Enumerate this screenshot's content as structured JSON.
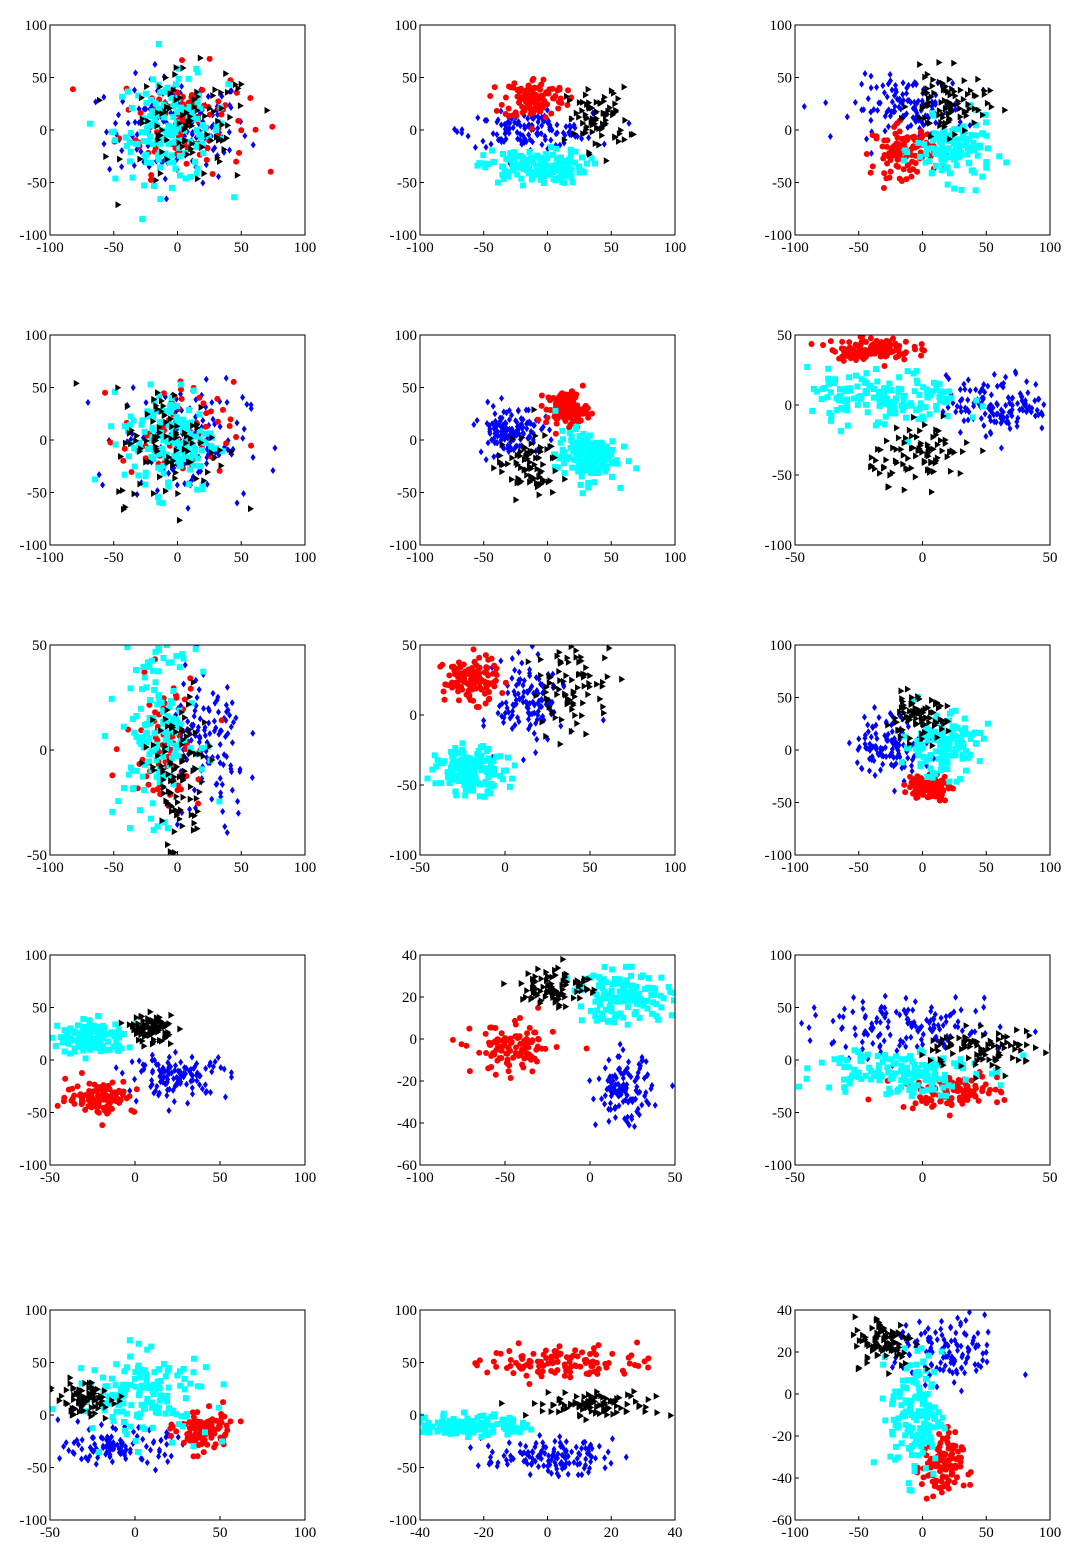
{
  "palette": {
    "red": "#ff0000",
    "blue": "#0000ff",
    "cyan": "#00ffff",
    "black": "#000000"
  },
  "marker_shapes": {
    "red": "circle",
    "blue": "diamond",
    "cyan": "square",
    "black": "triangle-right"
  },
  "chart_data": [
    {
      "type": "scatter",
      "xlim": [
        -100,
        100
      ],
      "ylim": [
        -100,
        100
      ],
      "xticks": [
        -100,
        -50,
        0,
        50,
        100
      ],
      "yticks": [
        -100,
        -50,
        0,
        50,
        100
      ],
      "grid": false,
      "clusters": [
        {
          "color": "red",
          "cx": 5,
          "cy": 10,
          "sx": 25,
          "sy": 25,
          "n": 100
        },
        {
          "color": "blue",
          "cx": 0,
          "cy": 0,
          "sx": 28,
          "sy": 25,
          "n": 130
        },
        {
          "color": "cyan",
          "cx": -5,
          "cy": 0,
          "sx": 22,
          "sy": 25,
          "n": 150
        },
        {
          "color": "black",
          "cx": 10,
          "cy": 0,
          "sx": 25,
          "sy": 28,
          "n": 90
        }
      ]
    },
    {
      "type": "scatter",
      "xlim": [
        -100,
        100
      ],
      "ylim": [
        -100,
        100
      ],
      "xticks": [
        -100,
        -50,
        0,
        50,
        100
      ],
      "yticks": [
        -100,
        -50,
        0,
        50,
        100
      ],
      "grid": false,
      "clusters": [
        {
          "color": "red",
          "cx": -10,
          "cy": 30,
          "sx": 12,
          "sy": 10,
          "n": 120
        },
        {
          "color": "blue",
          "cx": -15,
          "cy": 0,
          "sx": 25,
          "sy": 8,
          "n": 130
        },
        {
          "color": "cyan",
          "cx": -10,
          "cy": -35,
          "sx": 20,
          "sy": 8,
          "n": 150
        },
        {
          "color": "black",
          "cx": 40,
          "cy": 10,
          "sx": 12,
          "sy": 15,
          "n": 80
        }
      ]
    },
    {
      "type": "scatter",
      "xlim": [
        -100,
        100
      ],
      "ylim": [
        -100,
        100
      ],
      "xticks": [
        -100,
        -50,
        0,
        50,
        100
      ],
      "yticks": [
        -100,
        -50,
        0,
        50,
        100
      ],
      "grid": false,
      "clusters": [
        {
          "color": "red",
          "cx": -15,
          "cy": -20,
          "sx": 12,
          "sy": 12,
          "n": 110
        },
        {
          "color": "blue",
          "cx": -10,
          "cy": 20,
          "sx": 22,
          "sy": 15,
          "n": 130
        },
        {
          "color": "cyan",
          "cx": 25,
          "cy": -20,
          "sx": 15,
          "sy": 15,
          "n": 130
        },
        {
          "color": "black",
          "cx": 20,
          "cy": 25,
          "sx": 15,
          "sy": 15,
          "n": 90
        }
      ]
    },
    {
      "type": "scatter",
      "xlim": [
        -100,
        100
      ],
      "ylim": [
        -100,
        100
      ],
      "xticks": [
        -100,
        -50,
        0,
        50,
        100
      ],
      "yticks": [
        -100,
        -50,
        0,
        50,
        100
      ],
      "grid": false,
      "clusters": [
        {
          "color": "red",
          "cx": 0,
          "cy": 5,
          "sx": 22,
          "sy": 25,
          "n": 70
        },
        {
          "color": "blue",
          "cx": 5,
          "cy": 0,
          "sx": 25,
          "sy": 28,
          "n": 120
        },
        {
          "color": "cyan",
          "cx": -5,
          "cy": 0,
          "sx": 18,
          "sy": 25,
          "n": 150
        },
        {
          "color": "black",
          "cx": -5,
          "cy": -5,
          "sx": 22,
          "sy": 28,
          "n": 90
        }
      ]
    },
    {
      "type": "scatter",
      "xlim": [
        -100,
        100
      ],
      "ylim": [
        -100,
        100
      ],
      "xticks": [
        -100,
        -50,
        0,
        50,
        100
      ],
      "yticks": [
        -100,
        -50,
        0,
        50,
        100
      ],
      "grid": false,
      "clusters": [
        {
          "color": "red",
          "cx": 15,
          "cy": 30,
          "sx": 8,
          "sy": 8,
          "n": 130
        },
        {
          "color": "blue",
          "cx": -30,
          "cy": 10,
          "sx": 12,
          "sy": 12,
          "n": 130
        },
        {
          "color": "cyan",
          "cx": 30,
          "cy": -15,
          "sx": 12,
          "sy": 12,
          "n": 150
        },
        {
          "color": "black",
          "cx": -15,
          "cy": -25,
          "sx": 12,
          "sy": 15,
          "n": 80
        }
      ]
    },
    {
      "type": "scatter",
      "xlim": [
        -50,
        50
      ],
      "ylim": [
        -100,
        50
      ],
      "xticks": [
        -50,
        0,
        50
      ],
      "yticks": [
        -100,
        -50,
        0,
        50
      ],
      "grid": false,
      "clusters": [
        {
          "color": "red",
          "cx": -20,
          "cy": 40,
          "sx": 8,
          "sy": 4,
          "n": 120
        },
        {
          "color": "blue",
          "cx": 30,
          "cy": 0,
          "sx": 10,
          "sy": 10,
          "n": 140
        },
        {
          "color": "cyan",
          "cx": -15,
          "cy": 5,
          "sx": 15,
          "sy": 10,
          "n": 150
        },
        {
          "color": "black",
          "cx": 0,
          "cy": -35,
          "sx": 10,
          "sy": 10,
          "n": 90
        }
      ]
    },
    {
      "type": "scatter",
      "xlim": [
        -100,
        100
      ],
      "ylim": [
        -50,
        50
      ],
      "xticks": [
        -100,
        -50,
        0,
        50,
        100
      ],
      "yticks": [
        -50,
        0,
        50
      ],
      "grid": false,
      "clusters": [
        {
          "color": "red",
          "cx": -10,
          "cy": 5,
          "sx": 15,
          "sy": 15,
          "n": 80
        },
        {
          "color": "blue",
          "cx": 25,
          "cy": 0,
          "sx": 15,
          "sy": 20,
          "n": 120
        },
        {
          "color": "cyan",
          "cx": -15,
          "cy": 10,
          "sx": 15,
          "sy": 20,
          "n": 150
        },
        {
          "color": "black",
          "cx": 0,
          "cy": -15,
          "sx": 12,
          "sy": 20,
          "n": 100
        }
      ]
    },
    {
      "type": "scatter",
      "xlim": [
        -50,
        100
      ],
      "ylim": [
        -100,
        50
      ],
      "xticks": [
        -50,
        0,
        50,
        100
      ],
      "yticks": [
        -100,
        -50,
        0,
        50
      ],
      "grid": false,
      "clusters": [
        {
          "color": "red",
          "cx": -20,
          "cy": 25,
          "sx": 8,
          "sy": 8,
          "n": 120
        },
        {
          "color": "blue",
          "cx": 15,
          "cy": 10,
          "sx": 10,
          "sy": 15,
          "n": 130
        },
        {
          "color": "cyan",
          "cx": -20,
          "cy": -40,
          "sx": 10,
          "sy": 8,
          "n": 150
        },
        {
          "color": "black",
          "cx": 40,
          "cy": 20,
          "sx": 12,
          "sy": 15,
          "n": 80
        }
      ]
    },
    {
      "type": "scatter",
      "xlim": [
        -100,
        100
      ],
      "ylim": [
        -100,
        100
      ],
      "xticks": [
        -100,
        -50,
        0,
        50,
        100
      ],
      "yticks": [
        -100,
        -50,
        0,
        50,
        100
      ],
      "grid": false,
      "clusters": [
        {
          "color": "red",
          "cx": 5,
          "cy": -35,
          "sx": 8,
          "sy": 6,
          "n": 110
        },
        {
          "color": "blue",
          "cx": -25,
          "cy": 5,
          "sx": 15,
          "sy": 15,
          "n": 120
        },
        {
          "color": "cyan",
          "cx": 15,
          "cy": 5,
          "sx": 15,
          "sy": 15,
          "n": 140
        },
        {
          "color": "black",
          "cx": -5,
          "cy": 30,
          "sx": 12,
          "sy": 10,
          "n": 80
        }
      ]
    },
    {
      "type": "scatter",
      "xlim": [
        -50,
        100
      ],
      "ylim": [
        -100,
        100
      ],
      "xticks": [
        -50,
        0,
        50,
        100
      ],
      "yticks": [
        -100,
        -50,
        0,
        50,
        100
      ],
      "grid": false,
      "clusters": [
        {
          "color": "red",
          "cx": -20,
          "cy": -35,
          "sx": 10,
          "sy": 8,
          "n": 100
        },
        {
          "color": "blue",
          "cx": 25,
          "cy": -15,
          "sx": 15,
          "sy": 10,
          "n": 120
        },
        {
          "color": "cyan",
          "cx": -25,
          "cy": 20,
          "sx": 10,
          "sy": 8,
          "n": 140
        },
        {
          "color": "black",
          "cx": 10,
          "cy": 30,
          "sx": 6,
          "sy": 6,
          "n": 100
        }
      ]
    },
    {
      "type": "scatter",
      "xlim": [
        -100,
        50
      ],
      "ylim": [
        -60,
        40
      ],
      "xticks": [
        -100,
        -50,
        0,
        50
      ],
      "yticks": [
        -60,
        -40,
        -20,
        0,
        20,
        40
      ],
      "grid": false,
      "clusters": [
        {
          "color": "red",
          "cx": -45,
          "cy": -5,
          "sx": 12,
          "sy": 6,
          "n": 110
        },
        {
          "color": "blue",
          "cx": 20,
          "cy": -25,
          "sx": 8,
          "sy": 8,
          "n": 120
        },
        {
          "color": "cyan",
          "cx": 20,
          "cy": 20,
          "sx": 15,
          "sy": 6,
          "n": 140
        },
        {
          "color": "black",
          "cx": -20,
          "cy": 25,
          "sx": 10,
          "sy": 5,
          "n": 90
        }
      ]
    },
    {
      "type": "scatter",
      "xlim": [
        -50,
        50
      ],
      "ylim": [
        -100,
        100
      ],
      "xticks": [
        -50,
        0,
        50
      ],
      "yticks": [
        -100,
        -50,
        0,
        50,
        100
      ],
      "grid": false,
      "clusters": [
        {
          "color": "red",
          "cx": 10,
          "cy": -30,
          "sx": 10,
          "sy": 8,
          "n": 110
        },
        {
          "color": "blue",
          "cx": -5,
          "cy": 30,
          "sx": 20,
          "sy": 12,
          "n": 140
        },
        {
          "color": "cyan",
          "cx": -10,
          "cy": -10,
          "sx": 15,
          "sy": 12,
          "n": 150
        },
        {
          "color": "black",
          "cx": 25,
          "cy": 10,
          "sx": 12,
          "sy": 10,
          "n": 90
        }
      ]
    },
    {
      "type": "scatter",
      "xlim": [
        -50,
        100
      ],
      "ylim": [
        -100,
        100
      ],
      "xticks": [
        -50,
        0,
        50,
        100
      ],
      "yticks": [
        -100,
        -50,
        0,
        50,
        100
      ],
      "grid": false,
      "clusters": [
        {
          "color": "red",
          "cx": 40,
          "cy": -15,
          "sx": 8,
          "sy": 10,
          "n": 100
        },
        {
          "color": "blue",
          "cx": -10,
          "cy": -30,
          "sx": 15,
          "sy": 8,
          "n": 110
        },
        {
          "color": "cyan",
          "cx": 5,
          "cy": 20,
          "sx": 20,
          "sy": 20,
          "n": 150
        },
        {
          "color": "black",
          "cx": -30,
          "cy": 15,
          "sx": 8,
          "sy": 8,
          "n": 90
        }
      ]
    },
    {
      "type": "scatter",
      "xlim": [
        -40,
        40
      ],
      "ylim": [
        -100,
        100
      ],
      "xticks": [
        -40,
        -20,
        0,
        20,
        40
      ],
      "yticks": [
        -100,
        -50,
        0,
        50,
        100
      ],
      "grid": false,
      "clusters": [
        {
          "color": "red",
          "cx": 5,
          "cy": 50,
          "sx": 12,
          "sy": 8,
          "n": 110
        },
        {
          "color": "blue",
          "cx": 0,
          "cy": -40,
          "sx": 10,
          "sy": 8,
          "n": 130
        },
        {
          "color": "cyan",
          "cx": -25,
          "cy": -10,
          "sx": 10,
          "sy": 5,
          "n": 150
        },
        {
          "color": "black",
          "cx": 15,
          "cy": 10,
          "sx": 10,
          "sy": 6,
          "n": 100
        }
      ]
    },
    {
      "type": "scatter",
      "xlim": [
        -100,
        100
      ],
      "ylim": [
        -60,
        40
      ],
      "xticks": [
        -100,
        -50,
        0,
        50,
        100
      ],
      "yticks": [
        -60,
        -40,
        -20,
        0,
        20,
        40
      ],
      "grid": false,
      "clusters": [
        {
          "color": "red",
          "cx": 15,
          "cy": -35,
          "sx": 8,
          "sy": 8,
          "n": 110
        },
        {
          "color": "blue",
          "cx": 20,
          "cy": 20,
          "sx": 20,
          "sy": 8,
          "n": 120
        },
        {
          "color": "cyan",
          "cx": -5,
          "cy": -10,
          "sx": 10,
          "sy": 15,
          "n": 150
        },
        {
          "color": "black",
          "cx": -30,
          "cy": 25,
          "sx": 12,
          "sy": 6,
          "n": 90
        }
      ]
    }
  ]
}
